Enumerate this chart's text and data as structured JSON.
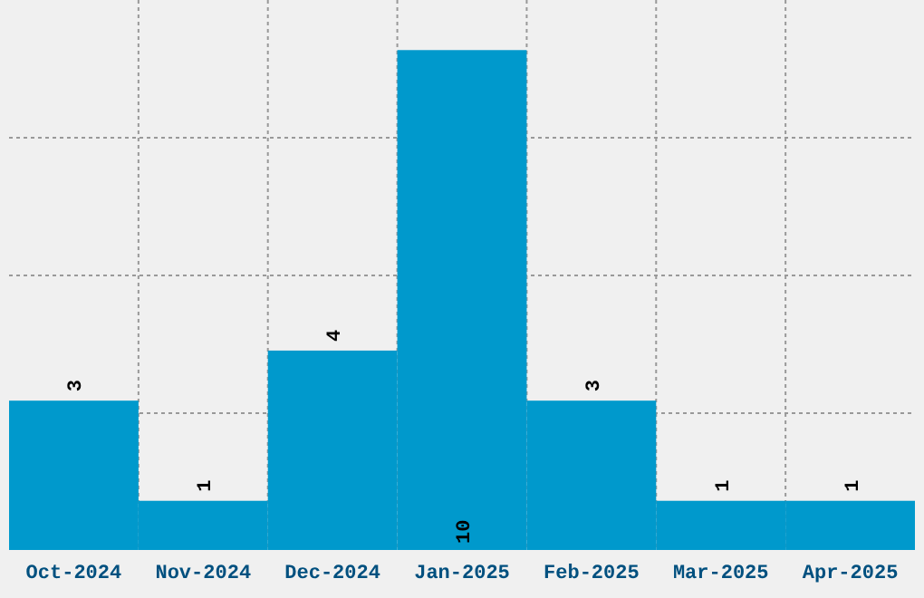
{
  "chart_data": {
    "type": "bar",
    "categories": [
      "Oct-2024",
      "Nov-2024",
      "Dec-2024",
      "Jan-2025",
      "Feb-2025",
      "Mar-2025",
      "Apr-2025"
    ],
    "values": [
      3,
      1,
      4,
      10,
      3,
      1,
      1
    ],
    "color": "#0099cc",
    "ylim": [
      0,
      11
    ],
    "yticks": [
      {
        "value": 2.75,
        "label": null
      },
      {
        "value": 5.5,
        "label": null
      },
      {
        "value": 8.25,
        "label": null
      }
    ],
    "tick_labels": "x",
    "grid": true,
    "data_labels": true
  }
}
